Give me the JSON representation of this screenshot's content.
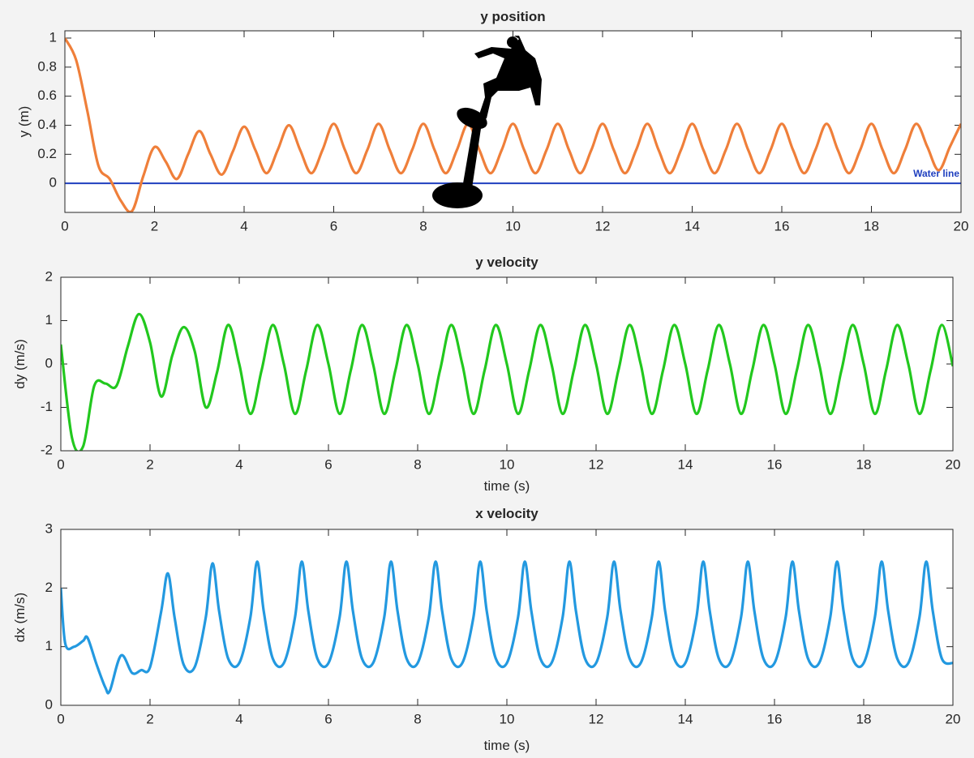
{
  "chart_data": [
    {
      "type": "line",
      "title": "y position",
      "ylabel": "y (m)",
      "color": "#ef7f3a",
      "xlim": [
        0,
        20
      ],
      "xticks": [
        0,
        2,
        4,
        6,
        8,
        10,
        12,
        14,
        16,
        18,
        20
      ],
      "ylim": [
        -0.2,
        1.05
      ],
      "yticks": [
        0,
        0.2,
        0.4,
        0.6,
        0.8,
        1
      ],
      "water_line": {
        "value": 0,
        "label": "Water line",
        "color": "#1f3fbf"
      },
      "x": [
        0,
        0.25,
        0.5,
        0.75,
        1,
        1.25,
        1.5,
        1.75,
        2,
        2.25,
        2.5,
        2.75,
        3,
        3.25,
        3.5,
        3.75,
        4,
        4.25,
        4.5,
        4.75,
        5,
        5.25,
        5.5,
        5.75,
        6,
        6.25,
        6.5,
        6.75,
        7,
        7.25,
        7.5,
        7.75,
        8,
        8.25,
        8.5,
        8.75,
        9,
        9.25,
        9.5,
        9.75,
        10,
        10.25,
        10.5,
        10.75,
        11,
        11.25,
        11.5,
        11.75,
        12,
        12.25,
        12.5,
        12.75,
        13,
        13.25,
        13.5,
        13.75,
        14,
        14.25,
        14.5,
        14.75,
        15,
        15.25,
        15.5,
        15.75,
        16,
        16.25,
        16.5,
        16.75,
        17,
        17.25,
        17.5,
        17.75,
        18,
        18.25,
        18.5,
        18.75,
        19,
        19.25,
        19.5,
        19.75,
        20
      ],
      "values": [
        1,
        0.85,
        0.5,
        0.12,
        0.03,
        -0.12,
        -0.19,
        0.05,
        0.25,
        0.15,
        0.03,
        0.2,
        0.36,
        0.2,
        0.06,
        0.22,
        0.39,
        0.23,
        0.07,
        0.23,
        0.4,
        0.23,
        0.07,
        0.23,
        0.41,
        0.23,
        0.07,
        0.23,
        0.41,
        0.23,
        0.07,
        0.23,
        0.41,
        0.23,
        0.07,
        0.23,
        0.41,
        0.23,
        0.07,
        0.23,
        0.41,
        0.23,
        0.07,
        0.23,
        0.41,
        0.23,
        0.07,
        0.23,
        0.41,
        0.23,
        0.07,
        0.23,
        0.41,
        0.23,
        0.07,
        0.23,
        0.41,
        0.23,
        0.07,
        0.23,
        0.41,
        0.23,
        0.07,
        0.23,
        0.41,
        0.23,
        0.07,
        0.23,
        0.41,
        0.23,
        0.07,
        0.23,
        0.41,
        0.23,
        0.07,
        0.23,
        0.41,
        0.25,
        0.09,
        0.25,
        0.41
      ]
    },
    {
      "type": "line",
      "title": "y velocity",
      "ylabel": "dy (m/s)",
      "xlabel": "time (s)",
      "color": "#22c81e",
      "xlim": [
        0,
        20
      ],
      "xticks": [
        0,
        2,
        4,
        6,
        8,
        10,
        12,
        14,
        16,
        18,
        20
      ],
      "ylim": [
        -2,
        2
      ],
      "yticks": [
        -2,
        -1,
        0,
        1,
        2
      ],
      "x": [
        0,
        0.25,
        0.5,
        0.75,
        1,
        1.25,
        1.5,
        1.75,
        2,
        2.25,
        2.5,
        2.75,
        3,
        3.25,
        3.5,
        3.75,
        4,
        4.25,
        4.5,
        4.75,
        5,
        5.25,
        5.5,
        5.75,
        6,
        6.25,
        6.5,
        6.75,
        7,
        7.25,
        7.5,
        7.75,
        8,
        8.25,
        8.5,
        8.75,
        9,
        9.25,
        9.5,
        9.75,
        10,
        10.25,
        10.5,
        10.75,
        11,
        11.25,
        11.5,
        11.75,
        12,
        12.25,
        12.5,
        12.75,
        13,
        13.25,
        13.5,
        13.75,
        14,
        14.25,
        14.5,
        14.75,
        15,
        15.25,
        15.5,
        15.75,
        16,
        16.25,
        16.5,
        16.75,
        17,
        17.25,
        17.5,
        17.75,
        18,
        18.25,
        18.5,
        18.75,
        19,
        19.25,
        19.5,
        19.75,
        20
      ],
      "values": [
        0.45,
        -1.7,
        -1.9,
        -0.5,
        -0.45,
        -0.5,
        0.4,
        1.15,
        0.5,
        -0.75,
        0.2,
        0.85,
        0.3,
        -1,
        -0.2,
        0.9,
        0,
        -1.15,
        -0.15,
        0.9,
        0,
        -1.15,
        -0.15,
        0.9,
        0,
        -1.15,
        -0.15,
        0.9,
        0,
        -1.15,
        -0.15,
        0.9,
        0,
        -1.15,
        -0.15,
        0.9,
        0,
        -1.15,
        -0.15,
        0.9,
        0,
        -1.15,
        -0.15,
        0.9,
        0,
        -1.15,
        -0.15,
        0.9,
        0,
        -1.15,
        -0.15,
        0.9,
        0,
        -1.15,
        -0.15,
        0.9,
        0,
        -1.15,
        -0.15,
        0.9,
        0,
        -1.15,
        -0.15,
        0.9,
        0,
        -1.15,
        -0.15,
        0.9,
        0,
        -1.15,
        -0.15,
        0.9,
        0,
        -1.15,
        -0.15,
        0.9,
        0,
        -1.15,
        -0.15,
        0.9,
        -0.05
      ]
    },
    {
      "type": "line",
      "title": "x velocity",
      "ylabel": "dx (m/s)",
      "xlabel": "time (s)",
      "color": "#2399e0",
      "xlim": [
        0,
        20
      ],
      "xticks": [
        0,
        2,
        4,
        6,
        8,
        10,
        12,
        14,
        16,
        18,
        20
      ],
      "ylim": [
        0,
        3
      ],
      "yticks": [
        0,
        1,
        2,
        3
      ],
      "x": [
        0,
        0.1,
        0.3,
        0.5,
        0.6,
        0.8,
        1,
        1.1,
        1.35,
        1.6,
        1.8,
        2,
        2.25,
        2.4,
        2.55,
        2.75,
        3,
        3.25,
        3.4,
        3.55,
        3.75,
        4,
        4.25,
        4.4,
        4.55,
        4.75,
        5,
        5.25,
        5.4,
        5.55,
        5.75,
        6,
        6.25,
        6.4,
        6.55,
        6.75,
        7,
        7.25,
        7.4,
        7.55,
        7.75,
        8,
        8.25,
        8.4,
        8.55,
        8.75,
        9,
        9.25,
        9.4,
        9.55,
        9.75,
        10,
        10.25,
        10.4,
        10.55,
        10.75,
        11,
        11.25,
        11.4,
        11.55,
        11.75,
        12,
        12.25,
        12.4,
        12.55,
        12.75,
        13,
        13.25,
        13.4,
        13.55,
        13.75,
        14,
        14.25,
        14.4,
        14.55,
        14.75,
        15,
        15.25,
        15.4,
        15.55,
        15.75,
        16,
        16.25,
        16.4,
        16.55,
        16.75,
        17,
        17.25,
        17.4,
        17.55,
        17.75,
        18,
        18.25,
        18.4,
        18.55,
        18.75,
        19,
        19.25,
        19.4,
        19.55,
        19.75,
        20
      ],
      "values": [
        2,
        1.05,
        1,
        1.1,
        1.15,
        0.7,
        0.3,
        0.25,
        0.85,
        0.55,
        0.6,
        0.65,
        1.6,
        2.25,
        1.5,
        0.7,
        0.65,
        1.5,
        2.42,
        1.6,
        0.8,
        0.72,
        1.5,
        2.45,
        1.6,
        0.8,
        0.72,
        1.5,
        2.45,
        1.6,
        0.8,
        0.72,
        1.5,
        2.45,
        1.6,
        0.8,
        0.72,
        1.5,
        2.45,
        1.6,
        0.8,
        0.72,
        1.5,
        2.45,
        1.6,
        0.8,
        0.72,
        1.5,
        2.45,
        1.6,
        0.8,
        0.72,
        1.5,
        2.45,
        1.6,
        0.8,
        0.72,
        1.5,
        2.45,
        1.6,
        0.8,
        0.72,
        1.5,
        2.45,
        1.6,
        0.8,
        0.72,
        1.5,
        2.45,
        1.6,
        0.8,
        0.72,
        1.5,
        2.45,
        1.6,
        0.8,
        0.72,
        1.5,
        2.45,
        1.6,
        0.8,
        0.72,
        1.5,
        2.45,
        1.6,
        0.8,
        0.72,
        1.5,
        2.45,
        1.6,
        0.8,
        0.72,
        1.5,
        2.45,
        1.6,
        0.8,
        0.72,
        1.5,
        2.45,
        1.6,
        0.8,
        0.72
      ]
    }
  ]
}
